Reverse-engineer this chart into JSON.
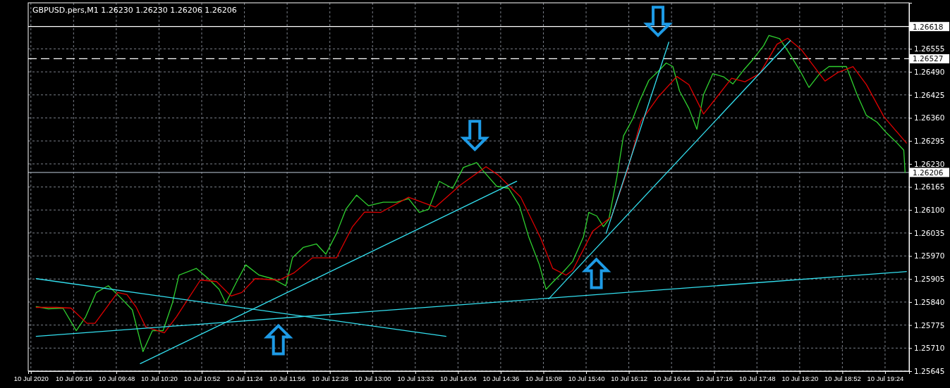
{
  "chart_data": {
    "type": "line",
    "title": "GBPUSD.pers,M1  1.26230 1.26230 1.26206 1.26206",
    "xlim": [
      "2020-07-10T08:42",
      "2020-07-10T19:42"
    ],
    "xticks": [
      {
        "value": "2020-07-10T08:44",
        "label": "10 Jul 2020"
      },
      {
        "value": "2020-07-10T09:16",
        "label": "10 Jul 09:16"
      },
      {
        "value": "2020-07-10T09:48",
        "label": "10 Jul 09:48"
      },
      {
        "value": "2020-07-10T10:20",
        "label": "10 Jul 10:20"
      },
      {
        "value": "2020-07-10T10:52",
        "label": "10 Jul 10:52"
      },
      {
        "value": "2020-07-10T11:24",
        "label": "10 Jul 11:24"
      },
      {
        "value": "2020-07-10T11:56",
        "label": "10 Jul 11:56"
      },
      {
        "value": "2020-07-10T12:28",
        "label": "10 Jul 12:28"
      },
      {
        "value": "2020-07-10T13:00",
        "label": "10 Jul 13:00"
      },
      {
        "value": "2020-07-10T13:32",
        "label": "10 Jul 13:32"
      },
      {
        "value": "2020-07-10T14:04",
        "label": "10 Jul 14:04"
      },
      {
        "value": "2020-07-10T14:36",
        "label": "10 Jul 14:36"
      },
      {
        "value": "2020-07-10T15:08",
        "label": "10 Jul 15:08"
      },
      {
        "value": "2020-07-10T15:40",
        "label": "10 Jul 15:40"
      },
      {
        "value": "2020-07-10T16:12",
        "label": "10 Jul 16:12"
      },
      {
        "value": "2020-07-10T16:44",
        "label": "10 Jul 16:44"
      },
      {
        "value": "2020-07-10T17:16",
        "label": "10 Jul 17:16"
      },
      {
        "value": "2020-07-10T17:48",
        "label": "10 Jul 17:48"
      },
      {
        "value": "2020-07-10T18:20",
        "label": "10 Jul 18:20"
      },
      {
        "value": "2020-07-10T18:52",
        "label": "10 Jul 18:52"
      },
      {
        "value": "2020-07-10T19:24",
        "label": "10 Jul 19:24"
      }
    ],
    "ylim": [
      1.25645,
      1.26685
    ],
    "yticks": [
      {
        "value": 1.25645,
        "label": "1.25645"
      },
      {
        "value": 1.2571,
        "label": "1.25710"
      },
      {
        "value": 1.25775,
        "label": "1.25775"
      },
      {
        "value": 1.2584,
        "label": "1.25840"
      },
      {
        "value": 1.25905,
        "label": "1.25905"
      },
      {
        "value": 1.2597,
        "label": "1.25970"
      },
      {
        "value": 1.26035,
        "label": "1.26035"
      },
      {
        "value": 1.261,
        "label": "1.26100"
      },
      {
        "value": 1.26165,
        "label": "1.26165"
      },
      {
        "value": 1.2623,
        "label": "1.26230"
      },
      {
        "value": 1.26295,
        "label": "1.26295"
      },
      {
        "value": 1.2636,
        "label": "1.26360"
      },
      {
        "value": 1.26425,
        "label": "1.26425"
      },
      {
        "value": 1.2649,
        "label": "1.26490"
      },
      {
        "value": 1.26555,
        "label": "1.26555"
      }
    ],
    "grid": true,
    "marker": "none",
    "line_style": "solid",
    "series": [
      {
        "color": "#2fd12f",
        "x": [
          "2020-07-10T08:48",
          "2020-07-10T08:57",
          "2020-07-10T09:08",
          "2020-07-10T09:18",
          "2020-07-10T09:25",
          "2020-07-10T09:33",
          "2020-07-10T09:42",
          "2020-07-10T09:50",
          "2020-07-10T10:00",
          "2020-07-10T10:08",
          "2020-07-10T10:15",
          "2020-07-10T10:23",
          "2020-07-10T10:30",
          "2020-07-10T10:35",
          "2020-07-10T10:48",
          "2020-07-10T10:57",
          "2020-07-10T11:05",
          "2020-07-10T11:10",
          "2020-07-10T11:18",
          "2020-07-10T11:25",
          "2020-07-10T11:35",
          "2020-07-10T11:45",
          "2020-07-10T11:55",
          "2020-07-10T12:00",
          "2020-07-10T12:08",
          "2020-07-10T12:18",
          "2020-07-10T12:25",
          "2020-07-10T12:33",
          "2020-07-10T12:40",
          "2020-07-10T12:48",
          "2020-07-10T12:57",
          "2020-07-10T13:08",
          "2020-07-10T13:18",
          "2020-07-10T13:27",
          "2020-07-10T13:35",
          "2020-07-10T13:42",
          "2020-07-10T13:50",
          "2020-07-10T14:00",
          "2020-07-10T14:08",
          "2020-07-10T14:18",
          "2020-07-10T14:23",
          "2020-07-10T14:33",
          "2020-07-10T14:42",
          "2020-07-10T14:50",
          "2020-07-10T14:57",
          "2020-07-10T15:05",
          "2020-07-10T15:10",
          "2020-07-10T15:15",
          "2020-07-10T15:23",
          "2020-07-10T15:30",
          "2020-07-10T15:38",
          "2020-07-10T15:42",
          "2020-07-10T15:48",
          "2020-07-10T15:53",
          "2020-07-10T15:57",
          "2020-07-10T16:03",
          "2020-07-10T16:08",
          "2020-07-10T16:15",
          "2020-07-10T16:20",
          "2020-07-10T16:27",
          "2020-07-10T16:35",
          "2020-07-10T16:40",
          "2020-07-10T16:45",
          "2020-07-10T16:50",
          "2020-07-10T16:57",
          "2020-07-10T17:03",
          "2020-07-10T17:08",
          "2020-07-10T17:15",
          "2020-07-10T17:23",
          "2020-07-10T17:30",
          "2020-07-10T17:38",
          "2020-07-10T17:45",
          "2020-07-10T17:53",
          "2020-07-10T17:57",
          "2020-07-10T18:05",
          "2020-07-10T18:12",
          "2020-07-10T18:20",
          "2020-07-10T18:27",
          "2020-07-10T18:35",
          "2020-07-10T18:42",
          "2020-07-10T18:50",
          "2020-07-10T18:55",
          "2020-07-10T19:03",
          "2020-07-10T19:10",
          "2020-07-10T19:18",
          "2020-07-10T19:25",
          "2020-07-10T19:33",
          "2020-07-10T19:38",
          "2020-07-10T19:39"
        ],
        "values": [
          1.25827,
          1.25821,
          1.25823,
          1.25759,
          1.25798,
          1.25867,
          1.25886,
          1.25857,
          1.25818,
          1.257,
          1.25759,
          1.25759,
          1.25837,
          1.25916,
          1.25935,
          1.25906,
          1.25876,
          1.25837,
          1.25896,
          1.25945,
          1.25916,
          1.25906,
          1.25886,
          1.25965,
          1.25994,
          1.26004,
          1.25975,
          1.26034,
          1.26102,
          1.26142,
          1.26112,
          1.26122,
          1.26122,
          1.26132,
          1.26093,
          1.26102,
          1.26181,
          1.26161,
          1.2622,
          1.26234,
          1.2621,
          1.26167,
          1.26161,
          1.26112,
          1.26024,
          1.25945,
          1.25876,
          1.25896,
          1.25926,
          1.25955,
          1.26024,
          1.26093,
          1.26083,
          1.26053,
          1.26073,
          1.26191,
          1.26309,
          1.26358,
          1.26407,
          1.26466,
          1.26495,
          1.26515,
          1.26505,
          1.26436,
          1.26387,
          1.26328,
          1.26426,
          1.26485,
          1.26476,
          1.26456,
          1.26495,
          1.26525,
          1.26564,
          1.26593,
          1.26584,
          1.26544,
          1.26495,
          1.26446,
          1.26485,
          1.26505,
          1.26505,
          1.26505,
          1.26426,
          1.26367,
          1.26348,
          1.26318,
          1.26289,
          1.26269,
          1.26206
        ]
      },
      {
        "color": "#e00000",
        "x": [
          "2020-07-10T08:48",
          "2020-07-10T09:03",
          "2020-07-10T09:14",
          "2020-07-10T09:26",
          "2020-07-10T09:32",
          "2020-07-10T09:49",
          "2020-07-10T09:56",
          "2020-07-10T10:03",
          "2020-07-10T10:10",
          "2020-07-10T10:24",
          "2020-07-10T10:33",
          "2020-07-10T10:51",
          "2020-07-10T11:03",
          "2020-07-10T11:14",
          "2020-07-10T11:22",
          "2020-07-10T11:32",
          "2020-07-10T11:50",
          "2020-07-10T12:01",
          "2020-07-10T12:15",
          "2020-07-10T12:33",
          "2020-07-10T12:45",
          "2020-07-10T12:54",
          "2020-07-10T13:06",
          "2020-07-10T13:27",
          "2020-07-10T13:47",
          "2020-07-10T14:06",
          "2020-07-10T14:25",
          "2020-07-10T14:34",
          "2020-07-10T14:51",
          "2020-07-10T15:06",
          "2020-07-10T15:15",
          "2020-07-10T15:25",
          "2020-07-10T15:30",
          "2020-07-10T15:45",
          "2020-07-10T15:59",
          "2020-07-10T16:11",
          "2020-07-10T16:21",
          "2020-07-10T16:34",
          "2020-07-10T16:48",
          "2020-07-10T16:57",
          "2020-07-10T17:08",
          "2020-07-10T17:18",
          "2020-07-10T17:29",
          "2020-07-10T17:39",
          "2020-07-10T17:50",
          "2020-07-10T18:03",
          "2020-07-10T18:11",
          "2020-07-10T18:21",
          "2020-07-10T18:39",
          "2020-07-10T18:49",
          "2020-07-10T19:00",
          "2020-07-10T19:10",
          "2020-07-10T19:23",
          "2020-07-10T19:40"
        ],
        "values": [
          1.25825,
          1.25825,
          1.25823,
          1.2578,
          1.2578,
          1.25867,
          1.25861,
          1.25825,
          1.2577,
          1.25753,
          1.25798,
          1.25902,
          1.25898,
          1.25857,
          1.25867,
          1.25906,
          1.25902,
          1.25922,
          1.25965,
          1.25965,
          1.26053,
          1.26094,
          1.26093,
          1.26136,
          1.26108,
          1.26171,
          1.26222,
          1.26199,
          1.26136,
          1.2602,
          1.25935,
          1.25916,
          1.2593,
          1.2604,
          1.26081,
          1.26212,
          1.2635,
          1.26419,
          1.26477,
          1.26454,
          1.26371,
          1.26419,
          1.26472,
          1.26462,
          1.26485,
          1.26568,
          1.26585,
          1.26554,
          1.26464,
          1.26489,
          1.26505,
          1.26454,
          1.26364,
          1.26289
        ]
      },
      {
        "color": "#33e0f0",
        "x": [
          "2020-07-10T08:48",
          "2020-07-10T13:55"
        ],
        "values": [
          1.25906,
          1.25743
        ]
      },
      {
        "color": "#33e0f0",
        "x": [
          "2020-07-10T08:48",
          "2020-07-10T19:40"
        ],
        "values": [
          1.25743,
          1.25926
        ]
      },
      {
        "color": "#33e0f0",
        "x": [
          "2020-07-10T10:06",
          "2020-07-10T14:48"
        ],
        "values": [
          1.25666,
          1.26181
        ]
      },
      {
        "color": "#33e0f0",
        "x": [
          "2020-07-10T15:12",
          "2020-07-10T18:13"
        ],
        "values": [
          1.25849,
          1.26578
        ]
      },
      {
        "color": "#33e0f0",
        "x": [
          "2020-07-10T15:55",
          "2020-07-10T16:42"
        ],
        "values": [
          1.26034,
          1.26574
        ]
      }
    ],
    "ref_lines": [
      {
        "axis": "y",
        "value": 1.26618,
        "label": "1.26618",
        "color": "#ffffff",
        "line_style": "solid"
      },
      {
        "axis": "y",
        "value": 1.26527,
        "label": "1.26527",
        "color": "#ffffff",
        "line_style": "dashed"
      },
      {
        "axis": "y",
        "value": 1.26206,
        "label": "1.26206",
        "color": "#9aa4b0",
        "line_style": "solid"
      }
    ]
  }
}
